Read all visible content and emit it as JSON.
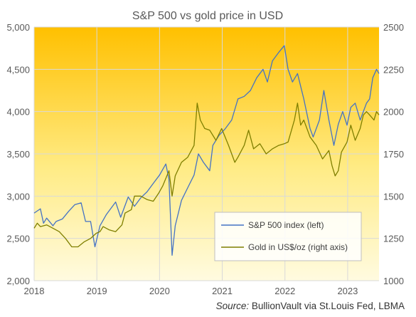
{
  "chart_data": {
    "type": "line",
    "title": "S&P 500 vs gold price in USD",
    "x_ticks": [
      "2018",
      "2019",
      "2020",
      "2021",
      "2022",
      "2023"
    ],
    "xlim": [
      2018.0,
      2023.5
    ],
    "y_left": {
      "ticks": [
        "2,000",
        "2,500",
        "3,000",
        "3,500",
        "4,000",
        "4,500",
        "5,000"
      ],
      "ylim": [
        2000,
        5000
      ]
    },
    "y_right": {
      "ticks": [
        "1000",
        "1250",
        "1500",
        "1750",
        "2000",
        "2250",
        "2500"
      ],
      "ylim": [
        1000,
        2500
      ]
    },
    "grid": true,
    "legend_position": "bottom-right",
    "series": [
      {
        "name": "S&P 500 index (left)",
        "axis": "left",
        "color": "#4472C4",
        "points": [
          [
            2018.0,
            2800
          ],
          [
            2018.1,
            2850
          ],
          [
            2018.15,
            2680
          ],
          [
            2018.2,
            2740
          ],
          [
            2018.3,
            2650
          ],
          [
            2018.35,
            2700
          ],
          [
            2018.45,
            2730
          ],
          [
            2018.55,
            2820
          ],
          [
            2018.65,
            2900
          ],
          [
            2018.75,
            2920
          ],
          [
            2018.82,
            2700
          ],
          [
            2018.9,
            2700
          ],
          [
            2018.97,
            2400
          ],
          [
            2019.05,
            2650
          ],
          [
            2019.15,
            2780
          ],
          [
            2019.3,
            2930
          ],
          [
            2019.38,
            2750
          ],
          [
            2019.5,
            2990
          ],
          [
            2019.6,
            2880
          ],
          [
            2019.7,
            2980
          ],
          [
            2019.8,
            3050
          ],
          [
            2019.9,
            3150
          ],
          [
            2020.0,
            3250
          ],
          [
            2020.1,
            3380
          ],
          [
            2020.15,
            3200
          ],
          [
            2020.2,
            2300
          ],
          [
            2020.25,
            2650
          ],
          [
            2020.35,
            2950
          ],
          [
            2020.45,
            3100
          ],
          [
            2020.55,
            3250
          ],
          [
            2020.62,
            3500
          ],
          [
            2020.7,
            3400
          ],
          [
            2020.8,
            3300
          ],
          [
            2020.85,
            3600
          ],
          [
            2020.95,
            3720
          ],
          [
            2021.05,
            3800
          ],
          [
            2021.15,
            3900
          ],
          [
            2021.25,
            4150
          ],
          [
            2021.35,
            4180
          ],
          [
            2021.45,
            4250
          ],
          [
            2021.55,
            4400
          ],
          [
            2021.65,
            4500
          ],
          [
            2021.72,
            4350
          ],
          [
            2021.8,
            4600
          ],
          [
            2021.9,
            4700
          ],
          [
            2021.99,
            4780
          ],
          [
            2022.05,
            4500
          ],
          [
            2022.12,
            4350
          ],
          [
            2022.2,
            4450
          ],
          [
            2022.3,
            4150
          ],
          [
            2022.4,
            3800
          ],
          [
            2022.45,
            3700
          ],
          [
            2022.55,
            3900
          ],
          [
            2022.62,
            4250
          ],
          [
            2022.7,
            3900
          ],
          [
            2022.78,
            3600
          ],
          [
            2022.85,
            3850
          ],
          [
            2022.92,
            4000
          ],
          [
            2022.99,
            3840
          ],
          [
            2023.05,
            4050
          ],
          [
            2023.12,
            4100
          ],
          [
            2023.2,
            3900
          ],
          [
            2023.3,
            4100
          ],
          [
            2023.35,
            4150
          ],
          [
            2023.4,
            4400
          ],
          [
            2023.46,
            4500
          ],
          [
            2023.5,
            4450
          ]
        ]
      },
      {
        "name": "Gold in US$/oz (right axis)",
        "axis": "right",
        "color": "#7F7F00",
        "points": [
          [
            2018.0,
            1310
          ],
          [
            2018.05,
            1340
          ],
          [
            2018.1,
            1320
          ],
          [
            2018.2,
            1330
          ],
          [
            2018.3,
            1310
          ],
          [
            2018.4,
            1290
          ],
          [
            2018.5,
            1250
          ],
          [
            2018.6,
            1200
          ],
          [
            2018.7,
            1200
          ],
          [
            2018.8,
            1230
          ],
          [
            2018.9,
            1250
          ],
          [
            2018.99,
            1280
          ],
          [
            2019.05,
            1290
          ],
          [
            2019.1,
            1320
          ],
          [
            2019.2,
            1300
          ],
          [
            2019.3,
            1290
          ],
          [
            2019.4,
            1330
          ],
          [
            2019.45,
            1400
          ],
          [
            2019.55,
            1420
          ],
          [
            2019.6,
            1500
          ],
          [
            2019.7,
            1500
          ],
          [
            2019.8,
            1480
          ],
          [
            2019.9,
            1470
          ],
          [
            2019.99,
            1520
          ],
          [
            2020.05,
            1560
          ],
          [
            2020.15,
            1650
          ],
          [
            2020.2,
            1500
          ],
          [
            2020.25,
            1620
          ],
          [
            2020.35,
            1700
          ],
          [
            2020.45,
            1730
          ],
          [
            2020.55,
            1800
          ],
          [
            2020.6,
            2050
          ],
          [
            2020.65,
            1950
          ],
          [
            2020.72,
            1900
          ],
          [
            2020.8,
            1890
          ],
          [
            2020.9,
            1830
          ],
          [
            2020.99,
            1900
          ],
          [
            2021.1,
            1800
          ],
          [
            2021.2,
            1700
          ],
          [
            2021.25,
            1730
          ],
          [
            2021.35,
            1800
          ],
          [
            2021.42,
            1890
          ],
          [
            2021.5,
            1780
          ],
          [
            2021.6,
            1810
          ],
          [
            2021.7,
            1750
          ],
          [
            2021.8,
            1780
          ],
          [
            2021.9,
            1800
          ],
          [
            2021.99,
            1810
          ],
          [
            2022.05,
            1820
          ],
          [
            2022.15,
            1950
          ],
          [
            2022.2,
            2050
          ],
          [
            2022.25,
            1920
          ],
          [
            2022.3,
            1950
          ],
          [
            2022.4,
            1850
          ],
          [
            2022.5,
            1800
          ],
          [
            2022.6,
            1720
          ],
          [
            2022.7,
            1770
          ],
          [
            2022.75,
            1680
          ],
          [
            2022.8,
            1620
          ],
          [
            2022.85,
            1650
          ],
          [
            2022.9,
            1760
          ],
          [
            2022.99,
            1820
          ],
          [
            2023.05,
            1920
          ],
          [
            2023.12,
            1830
          ],
          [
            2023.2,
            1900
          ],
          [
            2023.25,
            1980
          ],
          [
            2023.3,
            2000
          ],
          [
            2023.35,
            1980
          ],
          [
            2023.42,
            1950
          ],
          [
            2023.46,
            2000
          ],
          [
            2023.5,
            1980
          ]
        ]
      }
    ]
  },
  "source": {
    "label": "Source:",
    "text": " BullionVault via St.Louis Fed, LBMA"
  }
}
